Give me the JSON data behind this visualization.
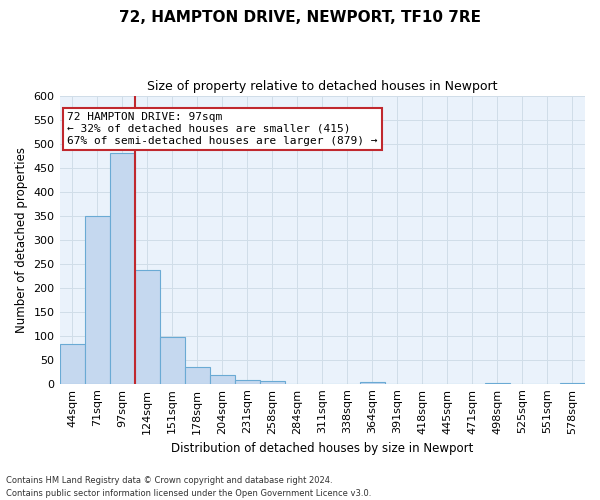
{
  "title": "72, HAMPTON DRIVE, NEWPORT, TF10 7RE",
  "subtitle": "Size of property relative to detached houses in Newport",
  "xlabel": "Distribution of detached houses by size in Newport",
  "ylabel": "Number of detached properties",
  "bar_labels": [
    "44sqm",
    "71sqm",
    "97sqm",
    "124sqm",
    "151sqm",
    "178sqm",
    "204sqm",
    "231sqm",
    "258sqm",
    "284sqm",
    "311sqm",
    "338sqm",
    "364sqm",
    "391sqm",
    "418sqm",
    "445sqm",
    "471sqm",
    "498sqm",
    "525sqm",
    "551sqm",
    "578sqm"
  ],
  "bar_values": [
    83,
    350,
    480,
    236,
    97,
    35,
    19,
    8,
    5,
    0,
    0,
    0,
    3,
    0,
    0,
    0,
    0,
    2,
    0,
    0,
    2
  ],
  "bar_color": "#c5d8ef",
  "bar_edge_color": "#6aaad4",
  "highlight_bar_index": 2,
  "highlight_color": "#c0282e",
  "ylim": [
    0,
    600
  ],
  "yticks": [
    0,
    50,
    100,
    150,
    200,
    250,
    300,
    350,
    400,
    450,
    500,
    550,
    600
  ],
  "annotation_title": "72 HAMPTON DRIVE: 97sqm",
  "annotation_line1": "← 32% of detached houses are smaller (415)",
  "annotation_line2": "67% of semi-detached houses are larger (879) →",
  "vline_color": "#c0282e",
  "footnote1": "Contains HM Land Registry data © Crown copyright and database right 2024.",
  "footnote2": "Contains public sector information licensed under the Open Government Licence v3.0.",
  "background_color": "#ffffff",
  "grid_color": "#d0dde8"
}
